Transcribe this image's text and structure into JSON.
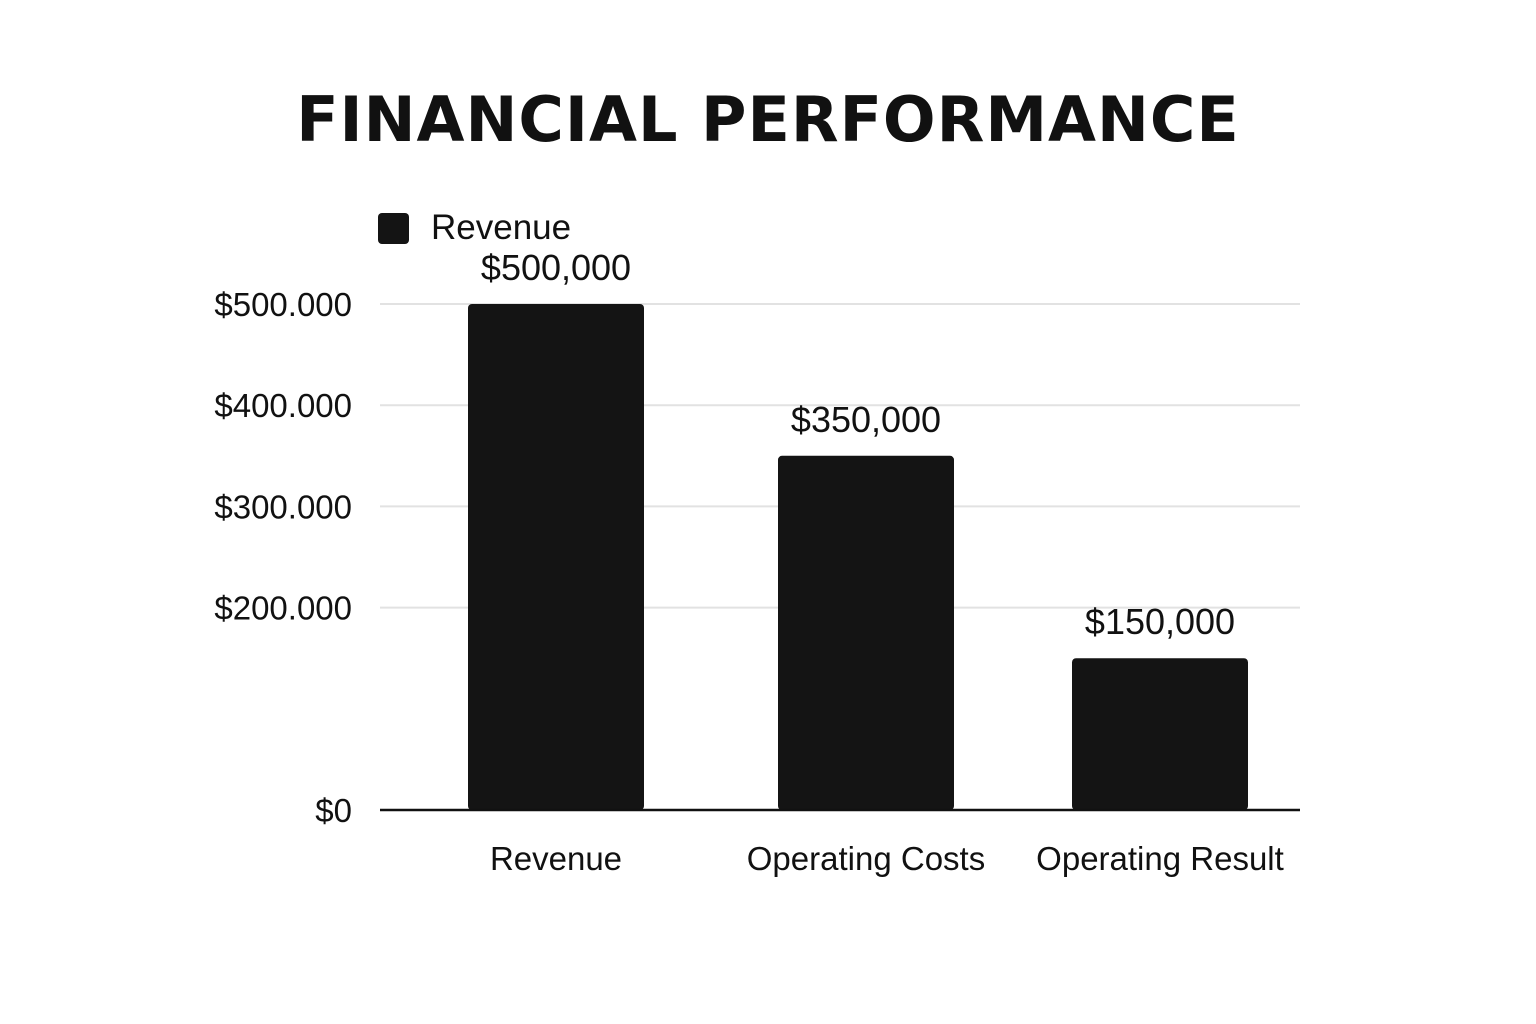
{
  "chart_data": {
    "type": "bar",
    "title": "FINANCIAL PERFORMANCE",
    "categories": [
      "Revenue",
      "Operating Costs",
      "Operating Result"
    ],
    "series": [
      {
        "name": "Revenue",
        "values": [
          500000,
          350000,
          150000
        ],
        "data_labels": [
          "$500,000",
          "$350,000",
          "$150,000"
        ]
      }
    ],
    "xlabel": "",
    "ylabel": "",
    "y_ticks": [
      0,
      200000,
      300000,
      400000,
      500000
    ],
    "y_tick_labels": [
      "$0",
      "$200.000",
      "$300.000",
      "$400.000",
      "$500.000"
    ],
    "ylim": [
      0,
      500000
    ],
    "grid": true,
    "legend_position": "top-left",
    "colors": {
      "bar": "#141414",
      "grid": "#e2e2e2",
      "axis": "#111111"
    }
  }
}
